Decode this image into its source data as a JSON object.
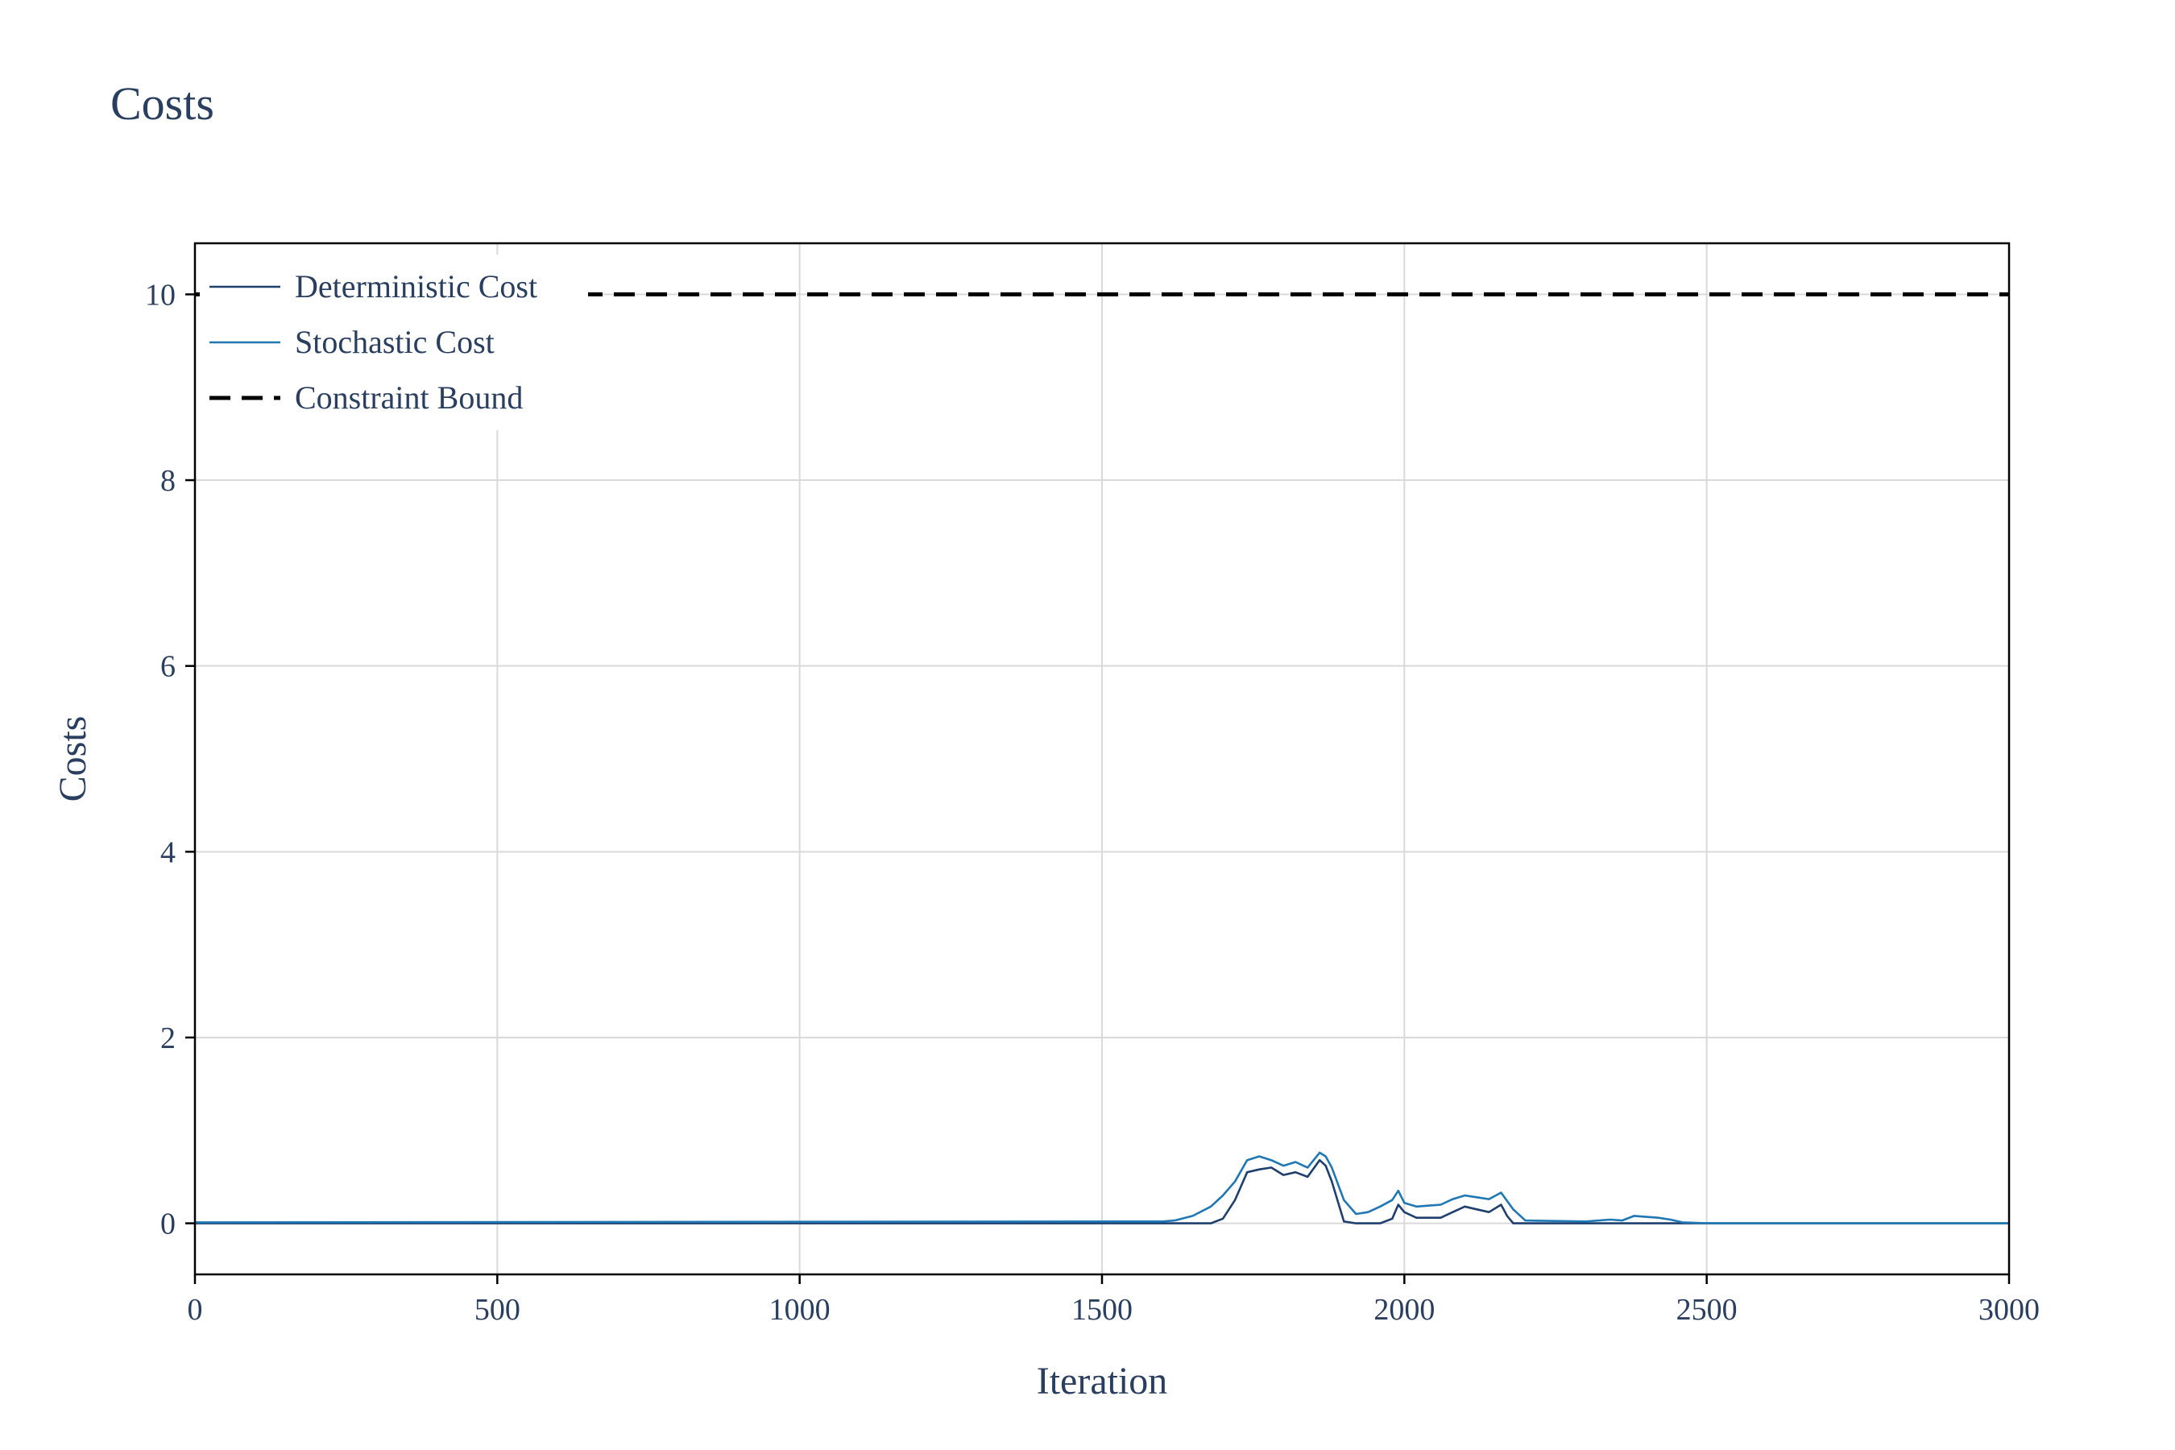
{
  "chart_data": {
    "type": "line",
    "title": "Costs",
    "xlabel": "Iteration",
    "ylabel": "Costs",
    "xlim": [
      0,
      3000
    ],
    "ylim": [
      -0.55,
      10.55
    ],
    "xticks": [
      0,
      500,
      1000,
      1500,
      2000,
      2500,
      3000
    ],
    "yticks": [
      0,
      2,
      4,
      6,
      8,
      10
    ],
    "grid": true,
    "legend_position": "top-left",
    "series": [
      {
        "name": "Deterministic Cost",
        "color": "#1f3f6e",
        "dash": "solid",
        "x": [
          0,
          1600,
          1680,
          1700,
          1720,
          1740,
          1760,
          1780,
          1800,
          1820,
          1840,
          1860,
          1870,
          1880,
          1900,
          1920,
          1960,
          1980,
          1990,
          2000,
          2020,
          2060,
          2080,
          2100,
          2120,
          2140,
          2160,
          2170,
          2180,
          2300,
          2500,
          3000
        ],
        "y": [
          0.0,
          0.0,
          0.0,
          0.05,
          0.25,
          0.55,
          0.58,
          0.6,
          0.52,
          0.55,
          0.5,
          0.68,
          0.62,
          0.45,
          0.02,
          0.0,
          0.0,
          0.05,
          0.2,
          0.12,
          0.06,
          0.06,
          0.12,
          0.18,
          0.15,
          0.12,
          0.2,
          0.08,
          0.0,
          0.0,
          0.0,
          0.0
        ]
      },
      {
        "name": "Stochastic Cost",
        "color": "#1f77b4",
        "dash": "solid",
        "x": [
          0,
          1600,
          1620,
          1650,
          1680,
          1700,
          1720,
          1740,
          1760,
          1780,
          1800,
          1820,
          1840,
          1860,
          1870,
          1880,
          1900,
          1920,
          1940,
          1960,
          1980,
          1990,
          2000,
          2020,
          2060,
          2080,
          2100,
          2120,
          2140,
          2160,
          2180,
          2200,
          2300,
          2340,
          2360,
          2380,
          2420,
          2440,
          2460,
          2500,
          3000
        ],
        "y": [
          0.01,
          0.02,
          0.03,
          0.08,
          0.18,
          0.3,
          0.45,
          0.68,
          0.72,
          0.68,
          0.62,
          0.66,
          0.6,
          0.76,
          0.72,
          0.6,
          0.25,
          0.1,
          0.12,
          0.18,
          0.25,
          0.35,
          0.22,
          0.18,
          0.2,
          0.26,
          0.3,
          0.28,
          0.26,
          0.33,
          0.15,
          0.03,
          0.02,
          0.04,
          0.03,
          0.08,
          0.06,
          0.04,
          0.01,
          0.0,
          0.0
        ]
      },
      {
        "name": "Constraint Bound",
        "color": "#000000",
        "dash": "dash",
        "x": [
          0,
          3000
        ],
        "y": [
          10,
          10
        ]
      }
    ]
  }
}
